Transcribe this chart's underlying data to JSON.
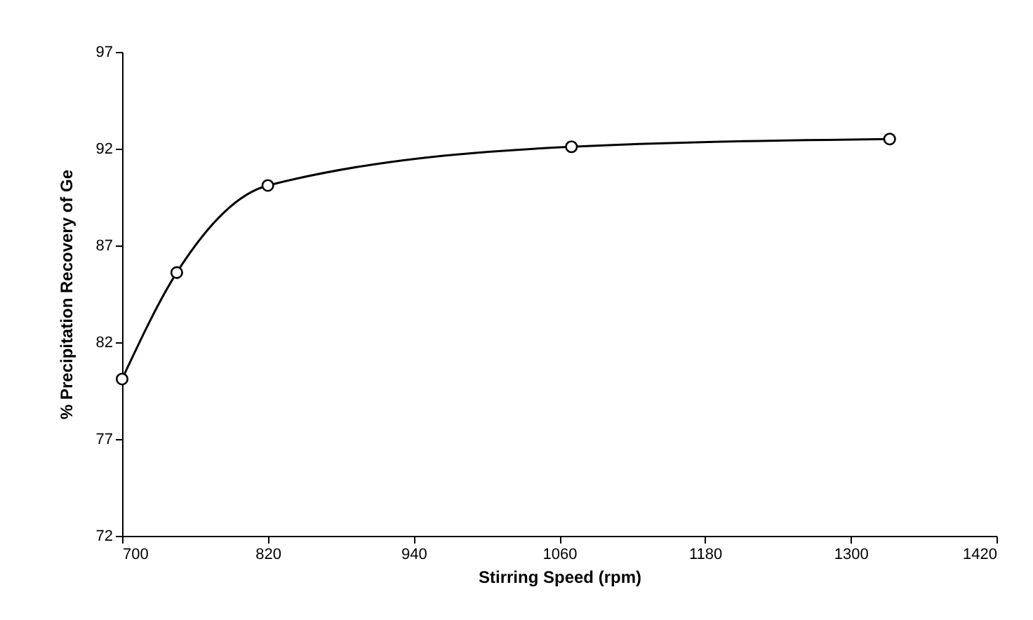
{
  "chart_data": {
    "type": "line",
    "xlabel": "Stirring Speed (rpm)",
    "ylabel": "% Precipitation Recovery of Ge",
    "x": [
      700,
      745,
      820,
      1070,
      1332
    ],
    "series": [
      {
        "color": "#000000",
        "values": [
          80.1,
          85.6,
          90.1,
          92.1,
          92.5
        ]
      }
    ],
    "xlim": [
      700,
      1420
    ],
    "xticks": [
      700,
      820,
      940,
      1060,
      1180,
      1300,
      1420
    ],
    "ylim": [
      72,
      97
    ],
    "yticks": [
      72,
      77,
      82,
      87,
      92,
      97
    ],
    "grid": false,
    "marker": "circle",
    "line_style": "solid"
  }
}
